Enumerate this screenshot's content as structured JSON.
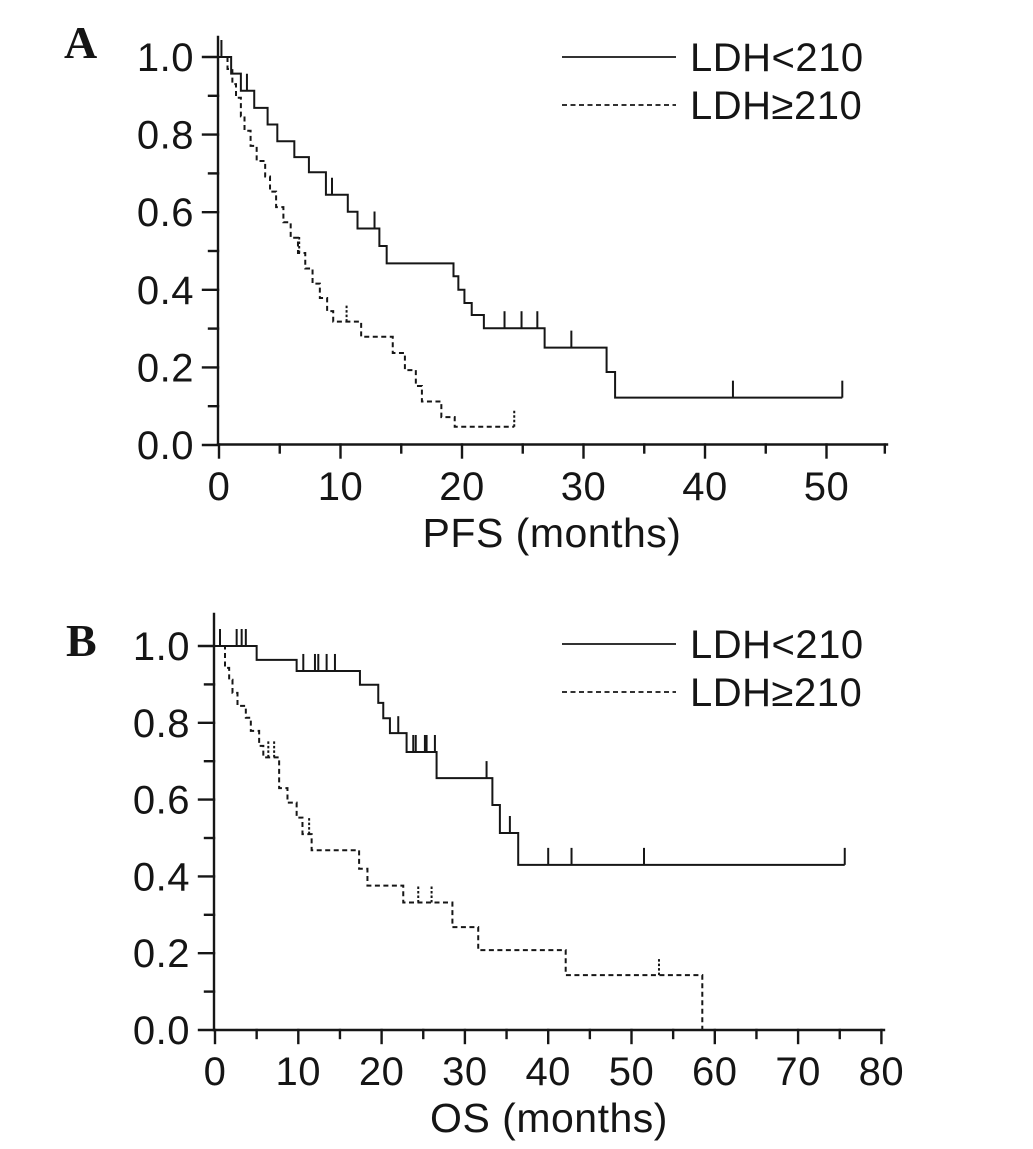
{
  "figure": {
    "background": "#ffffff",
    "line_color": "#161616"
  },
  "chart_data": [
    {
      "type": "line",
      "subtype": "kaplan-meier-step",
      "panel_label": "A",
      "title": "",
      "xlabel": "PFS (months)",
      "ylabel": "",
      "xlim": [
        0,
        54.8
      ],
      "ylim": [
        0,
        1.04
      ],
      "grid": false,
      "legend_position": "top-right",
      "x_ticks": [
        0,
        10,
        20,
        30,
        40,
        50
      ],
      "x_minor_ticks": [
        5,
        15,
        25,
        35,
        45,
        54.8
      ],
      "y_ticks": [
        1.0,
        0.8,
        0.6,
        0.4,
        0.2,
        0.0
      ],
      "y_tick_labels": [
        "1.0",
        "0.8",
        "0.6",
        "0.4",
        "0.2",
        "0.0"
      ],
      "y_minor_ticks": [
        0.9,
        0.7,
        0.5,
        0.3,
        0.1
      ],
      "series": [
        {
          "name": "LDH<210",
          "line_style": "solid",
          "color": "#161616",
          "steps": [
            [
              0,
              1.0
            ],
            [
              1.0,
              0.957
            ],
            [
              1.8,
              0.913
            ],
            [
              2.9,
              0.869
            ],
            [
              4.0,
              0.826
            ],
            [
              4.8,
              0.783
            ],
            [
              6.2,
              0.742
            ],
            [
              7.4,
              0.703
            ],
            [
              8.8,
              0.645
            ],
            [
              10.6,
              0.601
            ],
            [
              11.4,
              0.558
            ],
            [
              13.2,
              0.513
            ],
            [
              13.8,
              0.468
            ],
            [
              19.3,
              0.435
            ],
            [
              19.7,
              0.4
            ],
            [
              20.2,
              0.366
            ],
            [
              20.8,
              0.335
            ],
            [
              21.8,
              0.301
            ],
            [
              26.8,
              0.251
            ],
            [
              31.9,
              0.188
            ],
            [
              32.6,
              0.122
            ]
          ],
          "end_time": 51.3,
          "censor_marks": [
            [
              0.2,
              1.0
            ],
            [
              2.3,
              0.913
            ],
            [
              9.3,
              0.645
            ],
            [
              12.8,
              0.558
            ],
            [
              23.5,
              0.301
            ],
            [
              24.9,
              0.301
            ],
            [
              26.2,
              0.301
            ],
            [
              29.0,
              0.251
            ],
            [
              42.3,
              0.122
            ],
            [
              51.3,
              0.122
            ]
          ]
        },
        {
          "name": "LDH≥210",
          "line_style": "dashed",
          "color": "#161616",
          "steps": [
            [
              0,
              1.0
            ],
            [
              0.7,
              0.969
            ],
            [
              1.1,
              0.93
            ],
            [
              1.4,
              0.895
            ],
            [
              1.8,
              0.847
            ],
            [
              2.1,
              0.81
            ],
            [
              2.6,
              0.771
            ],
            [
              3.1,
              0.732
            ],
            [
              3.8,
              0.692
            ],
            [
              4.2,
              0.653
            ],
            [
              4.7,
              0.613
            ],
            [
              5.3,
              0.574
            ],
            [
              5.9,
              0.534
            ],
            [
              6.5,
              0.495
            ],
            [
              7.1,
              0.455
            ],
            [
              7.7,
              0.416
            ],
            [
              8.3,
              0.379
            ],
            [
              8.9,
              0.345
            ],
            [
              9.4,
              0.318
            ],
            [
              11.7,
              0.279
            ],
            [
              14.3,
              0.237
            ],
            [
              15.3,
              0.193
            ],
            [
              16.2,
              0.152
            ],
            [
              16.7,
              0.112
            ],
            [
              18.3,
              0.072
            ],
            [
              19.4,
              0.047
            ]
          ],
          "end_time": 24.3,
          "censor_marks": [
            [
              6.6,
              0.495
            ],
            [
              10.5,
              0.318
            ],
            [
              24.3,
              0.047
            ]
          ]
        }
      ]
    },
    {
      "type": "line",
      "subtype": "kaplan-meier-step",
      "panel_label": "B",
      "title": "",
      "xlabel": "OS (months)",
      "ylabel": "",
      "xlim": [
        0,
        80.3
      ],
      "ylim": [
        0,
        1.04
      ],
      "grid": false,
      "legend_position": "top-right",
      "x_ticks": [
        0,
        10,
        20,
        30,
        40,
        50,
        60,
        70,
        80
      ],
      "x_minor_ticks": [
        5,
        15,
        25,
        35,
        45,
        55,
        65,
        75
      ],
      "y_ticks": [
        1.0,
        0.8,
        0.6,
        0.4,
        0.2,
        0.0
      ],
      "y_tick_labels": [
        "1.0",
        "0.8",
        "0.6",
        "0.4",
        "0.2",
        "0.0"
      ],
      "y_minor_ticks": [
        0.9,
        0.7,
        0.5,
        0.3,
        0.1
      ],
      "series": [
        {
          "name": "LDH<210",
          "line_style": "solid",
          "color": "#161616",
          "steps": [
            [
              0,
              1.0
            ],
            [
              5.0,
              0.964
            ],
            [
              9.8,
              0.935
            ],
            [
              17.4,
              0.899
            ],
            [
              19.6,
              0.852
            ],
            [
              20.2,
              0.812
            ],
            [
              21.0,
              0.773
            ],
            [
              23.0,
              0.724
            ],
            [
              26.6,
              0.656
            ],
            [
              33.3,
              0.586
            ],
            [
              34.2,
              0.513
            ],
            [
              36.4,
              0.43
            ]
          ],
          "end_time": 75.6,
          "censor_marks": [
            [
              0.6,
              1.0
            ],
            [
              2.6,
              1.0
            ],
            [
              3.2,
              1.0
            ],
            [
              3.7,
              1.0
            ],
            [
              10.6,
              0.935
            ],
            [
              12.0,
              0.935
            ],
            [
              12.4,
              0.935
            ],
            [
              13.4,
              0.935
            ],
            [
              14.4,
              0.935
            ],
            [
              22.0,
              0.773
            ],
            [
              23.8,
              0.724
            ],
            [
              24.1,
              0.724
            ],
            [
              25.2,
              0.724
            ],
            [
              25.4,
              0.724
            ],
            [
              26.4,
              0.724
            ],
            [
              32.6,
              0.656
            ],
            [
              35.4,
              0.513
            ],
            [
              40.0,
              0.43
            ],
            [
              42.8,
              0.43
            ],
            [
              51.5,
              0.43
            ],
            [
              75.6,
              0.43
            ]
          ]
        },
        {
          "name": "LDH≥210",
          "line_style": "dashed",
          "color": "#161616",
          "steps": [
            [
              0,
              1.0
            ],
            [
              1.2,
              0.943
            ],
            [
              1.7,
              0.912
            ],
            [
              2.1,
              0.878
            ],
            [
              2.7,
              0.844
            ],
            [
              3.7,
              0.813
            ],
            [
              4.3,
              0.779
            ],
            [
              5.3,
              0.74
            ],
            [
              5.8,
              0.71
            ],
            [
              7.7,
              0.63
            ],
            [
              8.7,
              0.592
            ],
            [
              9.8,
              0.553
            ],
            [
              10.5,
              0.51
            ],
            [
              11.6,
              0.468
            ],
            [
              17.3,
              0.42
            ],
            [
              18.3,
              0.376
            ],
            [
              22.6,
              0.332
            ],
            [
              28.5,
              0.268
            ],
            [
              31.6,
              0.208
            ],
            [
              42.1,
              0.143
            ],
            [
              58.5,
              0.0
            ]
          ],
          "end_time": 58.5,
          "censor_marks": [
            [
              6.4,
              0.71
            ],
            [
              7.1,
              0.71
            ],
            [
              11.3,
              0.51
            ],
            [
              24.4,
              0.332
            ],
            [
              26.0,
              0.332
            ],
            [
              53.3,
              0.143
            ]
          ]
        }
      ]
    }
  ]
}
